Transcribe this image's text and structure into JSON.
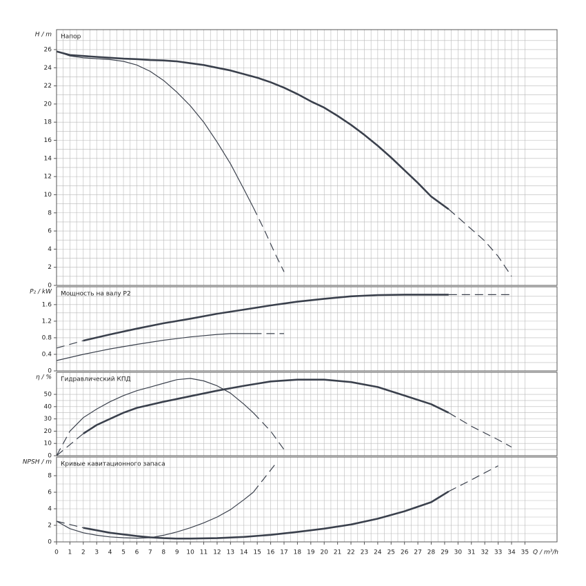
{
  "chart_data": [
    {
      "type": "line",
      "title": "Напор",
      "ylabel": "H / m",
      "xlim": [
        0,
        37.4
      ],
      "ylim": [
        0,
        28.2
      ],
      "yticks": [
        0,
        2,
        4,
        6,
        8,
        10,
        12,
        14,
        16,
        18,
        20,
        22,
        24,
        26
      ],
      "grid": true,
      "series": [
        {
          "color": "#3a404c",
          "width": 2.6,
          "dashed": false,
          "x": [
            0,
            1,
            2,
            3,
            4,
            5,
            6,
            7,
            8,
            9,
            10,
            11,
            12,
            13,
            14,
            15,
            16,
            17,
            18,
            19,
            20,
            21,
            22,
            23,
            24,
            25,
            26,
            27,
            28,
            29.3
          ],
          "values": [
            25.8,
            25.4,
            25.3,
            25.2,
            25.1,
            25,
            24.95,
            24.85,
            24.8,
            24.7,
            24.5,
            24.3,
            24,
            23.7,
            23.3,
            22.9,
            22.4,
            21.8,
            21.1,
            20.3,
            19.6,
            18.7,
            17.7,
            16.6,
            15.4,
            14.1,
            12.7,
            11.3,
            9.8,
            8.4
          ]
        },
        {
          "color": "#3a404c",
          "width": 1.2,
          "dashed": true,
          "x": [
            29.3,
            30,
            31,
            32,
            33,
            34
          ],
          "values": [
            8.4,
            7.5,
            6.2,
            4.9,
            3.2,
            1
          ]
        },
        {
          "color": "#3a404c",
          "width": 1.2,
          "dashed": false,
          "x": [
            0,
            1,
            2,
            3,
            4,
            5,
            6,
            7,
            8,
            9,
            10,
            11,
            12,
            13,
            14,
            14.7
          ],
          "values": [
            25.8,
            25.3,
            25.1,
            25,
            24.9,
            24.7,
            24.3,
            23.6,
            22.6,
            21.3,
            19.8,
            18,
            15.8,
            13.4,
            10.6,
            8.6
          ]
        },
        {
          "color": "#3a404c",
          "width": 1.2,
          "dashed": true,
          "x": [
            14.7,
            15.5,
            16.3,
            17
          ],
          "values": [
            8.6,
            6.2,
            3.6,
            1.5
          ]
        }
      ]
    },
    {
      "type": "line",
      "title": "Мощность на валу P2",
      "ylabel": "P₂ / kW",
      "xlim": [
        0,
        37.4
      ],
      "ylim": [
        0,
        2.03
      ],
      "yticks": [
        0,
        0.4,
        0.8,
        1.2,
        1.6
      ],
      "grid": true,
      "series": [
        {
          "color": "#3a404c",
          "width": 1.2,
          "dashed": true,
          "x": [
            0,
            2
          ],
          "values": [
            0.55,
            0.73
          ]
        },
        {
          "color": "#3a404c",
          "width": 2.6,
          "dashed": false,
          "x": [
            2,
            4,
            6,
            8,
            10,
            12,
            14,
            16,
            18,
            20,
            22,
            24,
            26,
            28,
            29.3
          ],
          "values": [
            0.73,
            0.88,
            1.02,
            1.15,
            1.26,
            1.38,
            1.48,
            1.58,
            1.67,
            1.74,
            1.8,
            1.83,
            1.84,
            1.84,
            1.84
          ]
        },
        {
          "color": "#3a404c",
          "width": 1.2,
          "dashed": true,
          "x": [
            29.3,
            34
          ],
          "values": [
            1.84,
            1.84
          ]
        },
        {
          "color": "#3a404c",
          "width": 1.2,
          "dashed": false,
          "x": [
            0,
            2,
            4,
            6,
            8,
            10,
            12,
            13,
            14.7
          ],
          "values": [
            0.25,
            0.4,
            0.53,
            0.64,
            0.74,
            0.82,
            0.88,
            0.9,
            0.9
          ]
        },
        {
          "color": "#3a404c",
          "width": 1.2,
          "dashed": true,
          "x": [
            14.7,
            17
          ],
          "values": [
            0.9,
            0.9
          ]
        }
      ]
    },
    {
      "type": "line",
      "title": "Гидравлический КПД",
      "ylabel": "η / %",
      "xlim": [
        0,
        37.4
      ],
      "ylim": [
        0,
        68
      ],
      "yticks": [
        0,
        10,
        20,
        30,
        40,
        50
      ],
      "grid": true,
      "series": [
        {
          "color": "#3a404c",
          "width": 1.2,
          "dashed": true,
          "x": [
            0,
            2
          ],
          "values": [
            0,
            18
          ]
        },
        {
          "color": "#3a404c",
          "width": 2.6,
          "dashed": false,
          "x": [
            2,
            3,
            4,
            5,
            6,
            8,
            10,
            12,
            14,
            16,
            18,
            20,
            22,
            24,
            26,
            28,
            29.3
          ],
          "values": [
            18,
            25,
            30,
            35,
            39,
            44,
            48.5,
            53,
            57,
            60.5,
            62,
            62,
            60,
            56,
            49,
            42,
            35
          ]
        },
        {
          "color": "#3a404c",
          "width": 1.2,
          "dashed": true,
          "x": [
            29.3,
            31,
            33,
            34
          ],
          "values": [
            35,
            24,
            13,
            7
          ]
        },
        {
          "color": "#3a404c",
          "width": 1.2,
          "dashed": true,
          "x": [
            0,
            1
          ],
          "values": [
            0,
            20
          ]
        },
        {
          "color": "#3a404c",
          "width": 1.2,
          "dashed": false,
          "x": [
            1,
            2,
            3,
            4,
            5,
            6,
            7,
            8,
            9,
            10,
            11,
            12,
            13,
            14,
            14.7
          ],
          "values": [
            20,
            31,
            38,
            44,
            49,
            53,
            56,
            59,
            62,
            63,
            61,
            57,
            51,
            42,
            35
          ]
        },
        {
          "color": "#3a404c",
          "width": 1.2,
          "dashed": true,
          "x": [
            14.7,
            16,
            17
          ],
          "values": [
            35,
            20,
            5
          ]
        }
      ]
    },
    {
      "type": "line",
      "title": "Кривые кавитационного запаса",
      "ylabel": "NPSH / m",
      "xlabel": "Q / m³/h",
      "xlim": [
        0,
        37.4
      ],
      "ylim": [
        0,
        10.25
      ],
      "xticks": [
        0,
        1,
        2,
        3,
        4,
        5,
        6,
        7,
        8,
        9,
        10,
        11,
        12,
        13,
        14,
        15,
        16,
        17,
        18,
        19,
        20,
        21,
        22,
        23,
        24,
        25,
        26,
        27,
        28,
        29,
        30,
        31,
        32,
        33,
        34,
        35
      ],
      "yticks": [
        0,
        2,
        4,
        6,
        8
      ],
      "grid": true,
      "series": [
        {
          "color": "#3a404c",
          "width": 1.2,
          "dashed": true,
          "x": [
            0,
            2
          ],
          "values": [
            2.5,
            1.7
          ]
        },
        {
          "color": "#3a404c",
          "width": 2.6,
          "dashed": false,
          "x": [
            2,
            3,
            4,
            5,
            6,
            7,
            8,
            9,
            10,
            12,
            14,
            16,
            18,
            20,
            22,
            24,
            26,
            28,
            29.3
          ],
          "values": [
            1.7,
            1.4,
            1.1,
            0.9,
            0.7,
            0.55,
            0.45,
            0.4,
            0.4,
            0.45,
            0.6,
            0.85,
            1.2,
            1.6,
            2.1,
            2.8,
            3.7,
            4.8,
            6.1
          ]
        },
        {
          "color": "#3a404c",
          "width": 1.2,
          "dashed": true,
          "x": [
            29.3,
            31,
            33
          ],
          "values": [
            6.1,
            7.5,
            9.2
          ]
        },
        {
          "color": "#3a404c",
          "width": 1.2,
          "dashed": false,
          "x": [
            0,
            1,
            2,
            3,
            4,
            5,
            6,
            7,
            8,
            9,
            10,
            11,
            12,
            13,
            14,
            14.7
          ],
          "values": [
            2.5,
            1.6,
            1.1,
            0.8,
            0.6,
            0.5,
            0.45,
            0.5,
            0.8,
            1.2,
            1.7,
            2.3,
            3,
            3.9,
            5.1,
            6
          ]
        },
        {
          "color": "#3a404c",
          "width": 1.2,
          "dashed": true,
          "x": [
            14.7,
            16.3
          ],
          "values": [
            6,
            9.3
          ]
        }
      ]
    }
  ]
}
